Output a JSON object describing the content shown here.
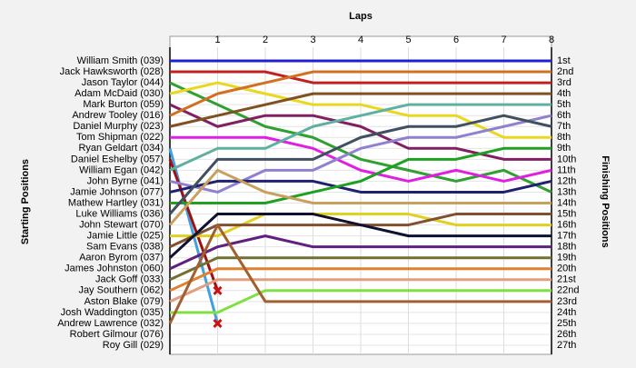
{
  "chart_data": {
    "type": "lap",
    "x_label": "Laps",
    "y_label": "Starting Positions",
    "y2_label": "Finishing Positions",
    "xlim": [
      0,
      8
    ],
    "xticks": [
      1,
      2,
      3,
      4,
      5,
      6,
      7,
      8
    ],
    "ylim": [
      1,
      27
    ],
    "y_reversed": true,
    "grid": true,
    "y2lim": [
      1,
      27
    ],
    "y2ticks": [
      {
        "value": 1,
        "label": "1st"
      },
      {
        "value": 2,
        "label": "2nd"
      },
      {
        "value": 3,
        "label": "3rd"
      },
      {
        "value": 4,
        "label": "4th"
      },
      {
        "value": 5,
        "label": "5th"
      },
      {
        "value": 6,
        "label": "6th"
      },
      {
        "value": 7,
        "label": "7th"
      },
      {
        "value": 8,
        "label": "8th"
      },
      {
        "value": 9,
        "label": "9th"
      },
      {
        "value": 10,
        "label": "10th"
      },
      {
        "value": 11,
        "label": "11th"
      },
      {
        "value": 12,
        "label": "12th"
      },
      {
        "value": 13,
        "label": "13th"
      },
      {
        "value": 14,
        "label": "14th"
      },
      {
        "value": 15,
        "label": "15th"
      },
      {
        "value": 16,
        "label": "16th"
      },
      {
        "value": 17,
        "label": "17th"
      },
      {
        "value": 18,
        "label": "18th"
      },
      {
        "value": 19,
        "label": "19th"
      },
      {
        "value": 20,
        "label": "20th"
      },
      {
        "value": 21,
        "label": "21st"
      },
      {
        "value": 22,
        "label": "22nd"
      },
      {
        "value": 23,
        "label": "23rd"
      },
      {
        "value": 24,
        "label": "24th"
      },
      {
        "value": 25,
        "label": "25th"
      },
      {
        "value": 26,
        "label": "26th"
      },
      {
        "value": 27,
        "label": "27th"
      }
    ],
    "x": [
      0,
      1,
      2,
      3,
      4,
      5,
      6,
      7,
      8
    ],
    "series": [
      {
        "name": "William Smith (039)",
        "color": "#2020d0",
        "values": [
          1,
          1,
          1,
          1,
          1,
          1,
          1,
          1,
          1
        ]
      },
      {
        "name": "Jack Hawksworth (028)",
        "color": "#c02020",
        "values": [
          2,
          2,
          2,
          3,
          3,
          3,
          3,
          3,
          3
        ]
      },
      {
        "name": "Jason Taylor (044)",
        "color": "#30a030",
        "values": [
          3,
          5,
          7,
          8,
          10,
          11,
          12,
          11,
          13
        ]
      },
      {
        "name": "Adam McDaid (030)",
        "color": "#e8d820",
        "values": [
          4,
          3,
          4,
          5,
          5,
          6,
          6,
          8,
          8
        ]
      },
      {
        "name": "Mark Burton (059)",
        "color": "#802060",
        "values": [
          5,
          7,
          6,
          6,
          7,
          9,
          9,
          10,
          10
        ]
      },
      {
        "name": "Andrew Tooley (016)",
        "color": "#d07020",
        "values": [
          6,
          4,
          3,
          2,
          2,
          2,
          2,
          2,
          2
        ]
      },
      {
        "name": "Daniel Murphy (023)",
        "color": "#805020",
        "values": [
          7,
          6,
          5,
          4,
          4,
          4,
          4,
          4,
          4
        ]
      },
      {
        "name": "Tom Shipman (022)",
        "color": "#e020e0",
        "values": [
          8,
          8,
          8,
          9,
          11,
          12,
          11,
          12,
          11
        ]
      },
      {
        "name": "Ryan Geldart (034)",
        "color": "#40a0e0",
        "values": [
          9,
          25,
          null,
          null,
          null,
          null,
          null,
          null,
          null
        ]
      },
      {
        "name": "Daniel Eshelby (057)",
        "color": "#a01010",
        "values": [
          10,
          22,
          null,
          null,
          null,
          null,
          null,
          null,
          null
        ]
      },
      {
        "name": "William Egan (042)",
        "color": "#60b0a0",
        "values": [
          11,
          9,
          9,
          7,
          6,
          5,
          5,
          5,
          5
        ]
      },
      {
        "name": "John Byrne (041)",
        "color": "#9080d0",
        "values": [
          12,
          13,
          11,
          11,
          9,
          8,
          8,
          7,
          6
        ]
      },
      {
        "name": "Jamie Johnson (077)",
        "color": "#202070",
        "values": [
          13,
          12,
          12,
          12,
          13,
          13,
          13,
          13,
          12
        ]
      },
      {
        "name": "Mathew Hartley (031)",
        "color": "#20a020",
        "values": [
          14,
          14,
          14,
          13,
          12,
          10,
          10,
          9,
          9
        ]
      },
      {
        "name": "Luke Williams (036)",
        "color": "#405060",
        "values": [
          15,
          10,
          10,
          10,
          8,
          7,
          7,
          6,
          7
        ]
      },
      {
        "name": "John Stewart (070)",
        "color": "#c8a060",
        "values": [
          16,
          11,
          13,
          14,
          14,
          14,
          14,
          14,
          14
        ]
      },
      {
        "name": "Jamie Little (025)",
        "color": "#e0d020",
        "values": [
          17,
          17,
          15,
          15,
          15,
          15,
          16,
          16,
          16
        ]
      },
      {
        "name": "Sam Evans (038)",
        "color": "#805030",
        "values": [
          18,
          16,
          16,
          16,
          16,
          16,
          15,
          15,
          15
        ]
      },
      {
        "name": "Aaron Byrom (037)",
        "color": "#101030",
        "values": [
          19,
          15,
          15,
          15,
          16,
          17,
          17,
          17,
          17
        ]
      },
      {
        "name": "James Johnston (060)",
        "color": "#602080",
        "values": [
          20,
          18,
          17,
          18,
          18,
          18,
          18,
          18,
          18
        ]
      },
      {
        "name": "Jack Goff (033)",
        "color": "#707030",
        "values": [
          21,
          19,
          19,
          19,
          19,
          19,
          19,
          19,
          19
        ]
      },
      {
        "name": "Jay Southern (062)",
        "color": "#e08030",
        "values": [
          22,
          20,
          20,
          20,
          20,
          20,
          20,
          20,
          20
        ]
      },
      {
        "name": "Aston Blake (079)",
        "color": "#e0a080",
        "values": [
          23,
          21,
          21,
          21,
          21,
          21,
          21,
          21,
          21
        ]
      },
      {
        "name": "Josh Waddington (035)",
        "color": "#80e040",
        "values": [
          24,
          24,
          22,
          22,
          22,
          22,
          22,
          22,
          22
        ]
      },
      {
        "name": "Andrew Lawrence (032)",
        "color": "#a06030",
        "values": [
          25,
          16,
          23,
          23,
          23,
          23,
          23,
          23,
          23
        ]
      },
      {
        "name": "Robert Gilmour (076)",
        "color": "#888888",
        "values": [
          26,
          null,
          null,
          null,
          null,
          null,
          null,
          null,
          null
        ]
      },
      {
        "name": "Roy Gill (029)",
        "color": "#888888",
        "values": [
          27,
          null,
          null,
          null,
          null,
          null,
          null,
          null,
          null
        ]
      }
    ]
  }
}
